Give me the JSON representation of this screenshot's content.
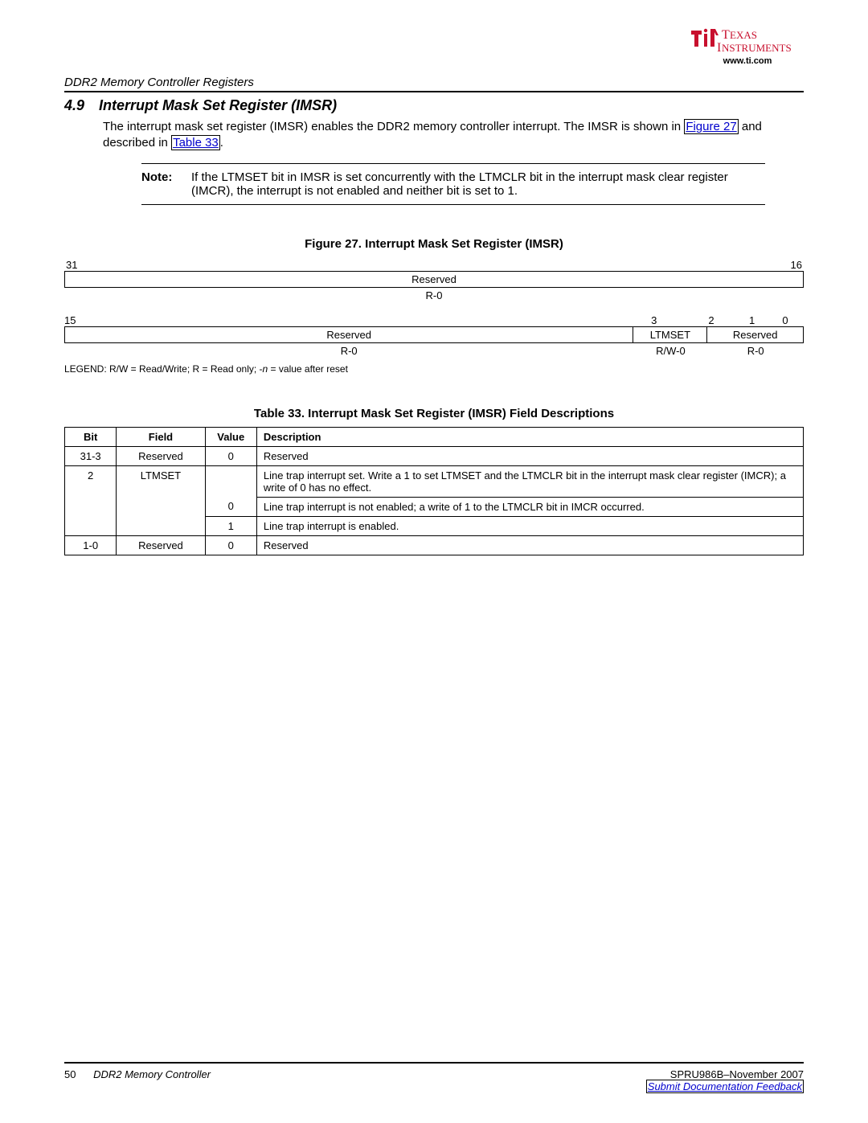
{
  "header": {
    "logo_alt": "Texas Instruments",
    "url": "www.ti.com",
    "chapter": "DDR2 Memory Controller Registers"
  },
  "section": {
    "number": "4.9",
    "title": "Interrupt Mask Set Register (IMSR)",
    "para_before_link1": "The interrupt mask set register (IMSR) enables the DDR2 memory controller interrupt. The IMSR is shown in ",
    "link1": "Figure 27",
    "para_mid": " and described in ",
    "link2": "Table 33",
    "para_end": "."
  },
  "note": {
    "label": "Note:",
    "text": "If the LTMSET bit in IMSR is set concurrently with the LTMCLR bit in the interrupt mask clear register (IMCR), the interrupt is not enabled and neither bit is set to 1."
  },
  "figure": {
    "caption": "Figure 27. Interrupt Mask Set Register (IMSR)",
    "row1": {
      "bit_hi": "31",
      "bit_lo": "16",
      "field": "Reserved",
      "val": "R-0"
    },
    "row2": {
      "bits": [
        "15",
        "3",
        "2",
        "1",
        "0"
      ],
      "bit_widths_pct": [
        3,
        72.5,
        8.5,
        7,
        4,
        5
      ],
      "fields": [
        "Reserved",
        "LTMSET",
        "Reserved"
      ],
      "field_widths_pct": [
        77,
        10,
        13
      ],
      "vals": [
        "R-0",
        "R/W-0",
        "R-0"
      ],
      "val_widths_pct": [
        77,
        10,
        13
      ]
    },
    "legend_prefix": "LEGEND: R/W = Read/Write; R = Read only; -",
    "legend_ital": "n",
    "legend_suffix": " = value after reset"
  },
  "table": {
    "caption": "Table 33. Interrupt Mask Set Register (IMSR) Field Descriptions",
    "columns": [
      "Bit",
      "Field",
      "Value",
      "Description"
    ],
    "col_widths_pct": [
      7,
      12,
      7,
      74
    ],
    "rows": [
      {
        "bit": "31-3",
        "field": "Reserved",
        "value": "0",
        "desc": "Reserved"
      },
      {
        "bit": "2",
        "field": "LTMSET",
        "value": "",
        "desc": "Line trap interrupt set. Write a 1 to set LTMSET and the LTMCLR bit in the interrupt mask clear register (IMCR); a write of 0 has no effect."
      },
      {
        "bit": "",
        "field": "",
        "value": "0",
        "desc": "Line trap interrupt is not enabled; a write of 1 to the LTMCLR bit in IMCR occurred."
      },
      {
        "bit": "",
        "field": "",
        "value": "1",
        "desc": "Line trap interrupt is enabled."
      },
      {
        "bit": "1-0",
        "field": "Reserved",
        "value": "0",
        "desc": "Reserved"
      }
    ]
  },
  "footer": {
    "page": "50",
    "title": "DDR2 Memory Controller",
    "docid": "SPRU986B–November 2007",
    "feedback": "Submit Documentation Feedback"
  }
}
